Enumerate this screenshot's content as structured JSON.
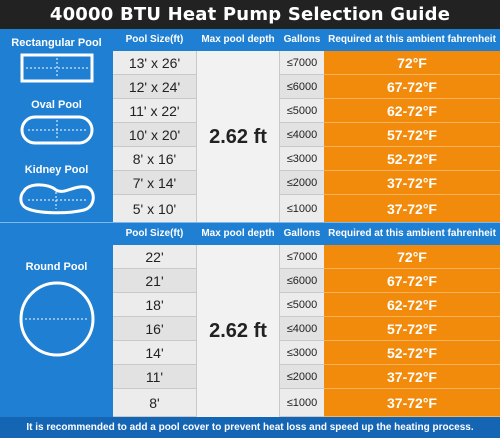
{
  "title": "40000 BTU Heat Pump Selection Guide",
  "headers": {
    "pool_size": "Pool Size(ft)",
    "max_depth": "Max pool depth",
    "gallons": "Gallons",
    "required_temp": "Required at this ambient fahrenheit"
  },
  "section1": {
    "pool_types": [
      "Rectangular Pool",
      "Oval Pool",
      "Kidney Pool"
    ],
    "depth": "2.62 ft",
    "rows": [
      {
        "size": "13' x 26'",
        "gallons": "≤7000",
        "temp": "72°F"
      },
      {
        "size": "12' x 24'",
        "gallons": "≤6000",
        "temp": "67-72°F"
      },
      {
        "size": "11' x 22'",
        "gallons": "≤5000",
        "temp": "62-72°F"
      },
      {
        "size": "10' x 20'",
        "gallons": "≤4000",
        "temp": "57-72°F"
      },
      {
        "size": "8' x 16'",
        "gallons": "≤3000",
        "temp": "52-72°F"
      },
      {
        "size": "7' x 14'",
        "gallons": "≤2000",
        "temp": "37-72°F"
      },
      {
        "size": "5' x 10'",
        "gallons": "≤1000",
        "temp": "37-72°F"
      }
    ]
  },
  "section2": {
    "pool_type": "Round Pool",
    "depth": "2.62 ft",
    "rows": [
      {
        "size": "22'",
        "gallons": "≤7000",
        "temp": "72°F"
      },
      {
        "size": "21'",
        "gallons": "≤6000",
        "temp": "67-72°F"
      },
      {
        "size": "18'",
        "gallons": "≤5000",
        "temp": "62-72°F"
      },
      {
        "size": "16'",
        "gallons": "≤4000",
        "temp": "57-72°F"
      },
      {
        "size": "14'",
        "gallons": "≤3000",
        "temp": "52-72°F"
      },
      {
        "size": "11'",
        "gallons": "≤2000",
        "temp": "37-72°F"
      },
      {
        "size": "8'",
        "gallons": "≤1000",
        "temp": "37-72°F"
      }
    ]
  },
  "footer": "It is recommended to add a pool cover to prevent heat loss and speed up the heating process.",
  "colors": {
    "blue": "#1f7fd2",
    "orange": "#f28b0c",
    "title_bg": "#222222"
  }
}
